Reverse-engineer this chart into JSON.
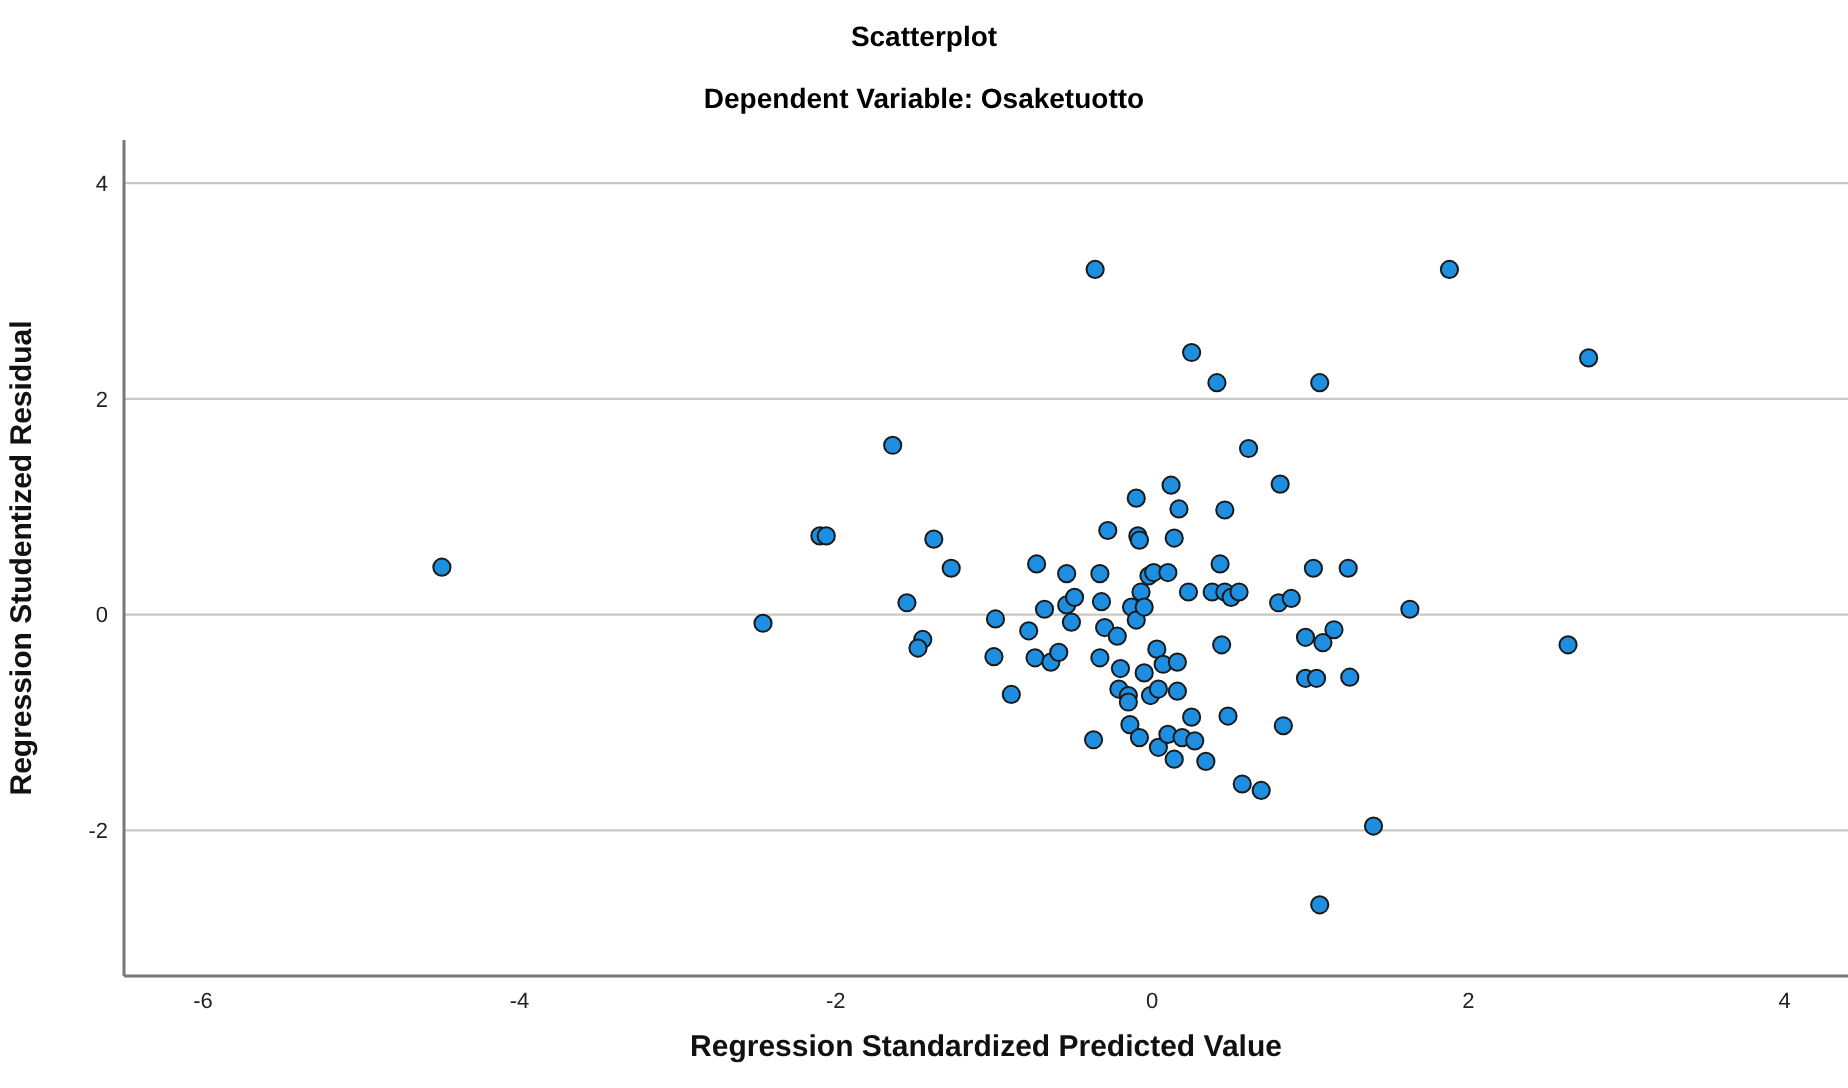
{
  "chart_data": {
    "type": "scatter",
    "title": "Scatterplot",
    "subtitle": "Dependent Variable: Osaketuotto",
    "xlabel": "Regression Standardized Predicted Value",
    "ylabel": "Regression Studentized Residual",
    "x": [
      -4.49,
      -2.46,
      -2.1,
      -2.06,
      -1.64,
      -1.55,
      -1.45,
      -1.48,
      -1.38,
      -1.27,
      -0.99,
      -1.0,
      -0.89,
      -0.78,
      -0.73,
      -0.74,
      -0.68,
      -0.64,
      -0.59,
      -0.54,
      -0.54,
      -0.51,
      -0.49,
      -0.36,
      -0.37,
      -0.33,
      -0.32,
      -0.33,
      -0.3,
      -0.28,
      -0.22,
      -0.2,
      -0.21,
      -0.15,
      -0.15,
      -0.14,
      -0.13,
      -0.1,
      -0.1,
      -0.09,
      -0.08,
      -0.08,
      -0.07,
      -0.05,
      -0.05,
      -0.02,
      -0.01,
      0.01,
      0.03,
      0.04,
      0.04,
      0.07,
      0.1,
      0.1,
      0.12,
      0.14,
      0.14,
      0.16,
      0.16,
      0.17,
      0.19,
      0.23,
      0.25,
      0.25,
      0.27,
      0.34,
      0.38,
      0.41,
      0.43,
      0.44,
      0.46,
      0.46,
      0.48,
      0.5,
      0.55,
      0.57,
      0.61,
      0.69,
      0.8,
      0.81,
      0.83,
      0.88,
      0.97,
      0.97,
      1.02,
      1.04,
      1.06,
      1.06,
      1.08,
      1.15,
      1.24,
      1.25,
      1.4,
      1.63,
      1.88,
      2.63,
      2.76
    ],
    "values": [
      0.44,
      -0.08,
      0.73,
      0.73,
      1.57,
      0.11,
      -0.23,
      -0.31,
      0.7,
      0.43,
      -0.04,
      -0.39,
      -0.74,
      -0.15,
      0.47,
      -0.4,
      0.05,
      -0.44,
      -0.35,
      0.38,
      0.09,
      -0.07,
      0.16,
      3.2,
      -1.16,
      0.38,
      0.12,
      -0.4,
      -0.12,
      0.78,
      -0.2,
      -0.5,
      -0.69,
      -0.75,
      -0.81,
      -1.02,
      0.07,
      1.08,
      -0.05,
      0.73,
      0.69,
      -1.14,
      0.21,
      0.07,
      -0.54,
      0.36,
      -0.75,
      0.39,
      -0.32,
      -0.69,
      -1.23,
      -0.46,
      0.39,
      -1.11,
      1.2,
      0.71,
      -1.34,
      -0.71,
      -0.44,
      0.98,
      -1.14,
      0.21,
      2.43,
      -0.95,
      -1.17,
      -1.36,
      0.21,
      2.15,
      0.47,
      -0.28,
      0.21,
      0.97,
      -0.94,
      0.16,
      0.21,
      -1.57,
      1.54,
      -1.63,
      0.11,
      1.21,
      -1.03,
      0.15,
      -0.21,
      -0.59,
      0.43,
      -0.59,
      2.15,
      -2.69,
      -0.26,
      -0.14,
      0.43,
      -0.58,
      -1.96,
      0.05,
      3.2,
      -0.28,
      2.38
    ],
    "color": "#1e8fe0",
    "xlim": [
      -6.5,
      4.4
    ],
    "ylim": [
      -3.35,
      4.4
    ],
    "xticks": [
      -6,
      -4,
      -2,
      0,
      2,
      4
    ],
    "yticks": [
      -2,
      0,
      2,
      4
    ],
    "grid": "y",
    "marker": "circle"
  }
}
